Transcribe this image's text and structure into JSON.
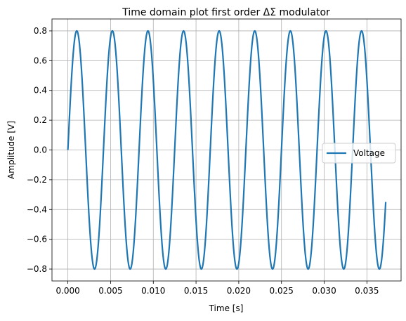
{
  "chart_data": {
    "type": "line",
    "title": "Time domain plot first order ΔΣ modulator",
    "xlabel": "Time [s]",
    "ylabel": "Amplitude [V]",
    "xlim": [
      -0.00186,
      0.039
    ],
    "ylim": [
      -0.88,
      0.88
    ],
    "xticks": [
      0.0,
      0.005,
      0.01,
      0.015,
      0.02,
      0.025,
      0.03,
      0.035
    ],
    "xtick_labels": [
      "0.000",
      "0.005",
      "0.010",
      "0.015",
      "0.020",
      "0.025",
      "0.030",
      "0.035"
    ],
    "yticks": [
      -0.8,
      -0.6,
      -0.4,
      -0.2,
      0.0,
      0.2,
      0.4,
      0.6,
      0.8
    ],
    "ytick_labels": [
      "−0.8",
      "−0.6",
      "−0.4",
      "−0.2",
      "0.0",
      "0.2",
      "0.4",
      "0.6",
      "0.8"
    ],
    "grid": true,
    "legend_position": "center-right",
    "series": [
      {
        "name": "Voltage",
        "color": "#1f77b4",
        "function": "amplitude*sin(2*pi*frequency*t)",
        "amplitude": 0.8,
        "frequency": 240,
        "t_start": 0.0,
        "t_end": 0.0372
      }
    ]
  }
}
